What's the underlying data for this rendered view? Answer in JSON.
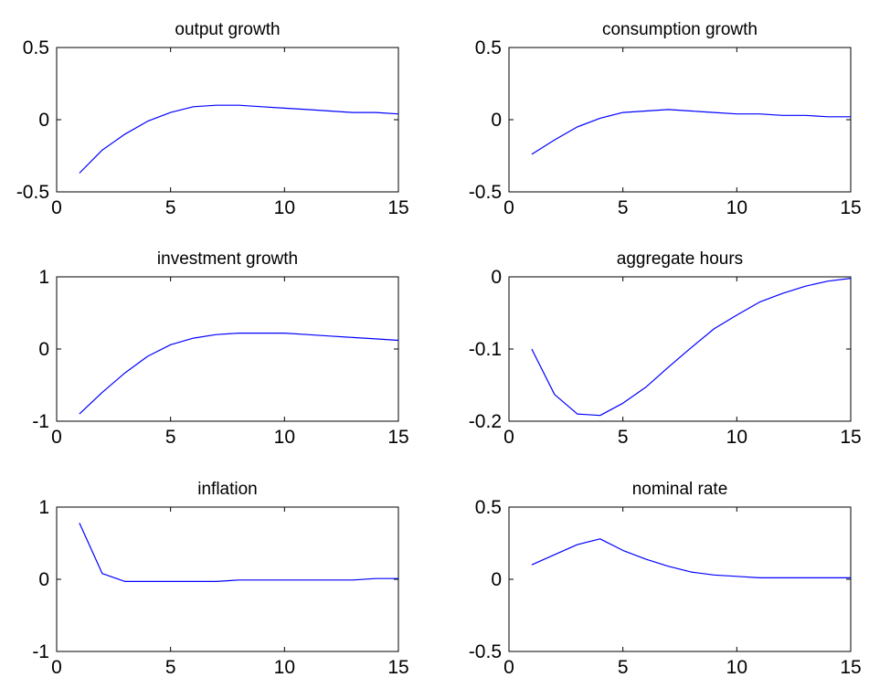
{
  "figure": {
    "line_color": "#0000ff",
    "axes_color": "#000000",
    "background": "#ffffff"
  },
  "chart_data": [
    {
      "type": "line",
      "title": "output growth",
      "xlabel": "",
      "ylabel": "",
      "xlim": [
        0,
        15
      ],
      "ylim": [
        -0.5,
        0.5
      ],
      "xticks": [
        0,
        5,
        10,
        15
      ],
      "xtick_labels": [
        "0",
        "5",
        "10",
        "15"
      ],
      "yticks": [
        -0.5,
        0,
        0.5
      ],
      "ytick_labels": [
        "-0.5",
        "0",
        "0.5"
      ],
      "grid": false,
      "x": [
        1,
        2,
        3,
        4,
        5,
        6,
        7,
        8,
        9,
        10,
        11,
        12,
        13,
        14,
        15
      ],
      "series": [
        {
          "values": [
            -0.37,
            -0.21,
            -0.1,
            -0.01,
            0.05,
            0.09,
            0.1,
            0.1,
            0.09,
            0.08,
            0.07,
            0.06,
            0.05,
            0.05,
            0.04
          ]
        }
      ]
    },
    {
      "type": "line",
      "title": "consumption growth",
      "xlabel": "",
      "ylabel": "",
      "xlim": [
        0,
        15
      ],
      "ylim": [
        -0.5,
        0.5
      ],
      "xticks": [
        0,
        5,
        10,
        15
      ],
      "xtick_labels": [
        "0",
        "5",
        "10",
        "15"
      ],
      "yticks": [
        -0.5,
        0,
        0.5
      ],
      "ytick_labels": [
        "-0.5",
        "0",
        "0.5"
      ],
      "grid": false,
      "x": [
        1,
        2,
        3,
        4,
        5,
        6,
        7,
        8,
        9,
        10,
        11,
        12,
        13,
        14,
        15
      ],
      "series": [
        {
          "values": [
            -0.24,
            -0.14,
            -0.05,
            0.01,
            0.05,
            0.06,
            0.07,
            0.06,
            0.05,
            0.04,
            0.04,
            0.03,
            0.03,
            0.02,
            0.02
          ]
        }
      ]
    },
    {
      "type": "line",
      "title": "investment growth",
      "xlabel": "",
      "ylabel": "",
      "xlim": [
        0,
        15
      ],
      "ylim": [
        -1,
        1
      ],
      "xticks": [
        0,
        5,
        10,
        15
      ],
      "xtick_labels": [
        "0",
        "5",
        "10",
        "15"
      ],
      "yticks": [
        -1,
        0,
        1
      ],
      "ytick_labels": [
        "-1",
        "0",
        "1"
      ],
      "grid": false,
      "x": [
        1,
        2,
        3,
        4,
        5,
        6,
        7,
        8,
        9,
        10,
        11,
        12,
        13,
        14,
        15
      ],
      "series": [
        {
          "values": [
            -0.9,
            -0.6,
            -0.33,
            -0.1,
            0.06,
            0.15,
            0.2,
            0.22,
            0.22,
            0.22,
            0.2,
            0.18,
            0.16,
            0.14,
            0.12
          ]
        }
      ]
    },
    {
      "type": "line",
      "title": "aggregate hours",
      "xlabel": "",
      "ylabel": "",
      "xlim": [
        0,
        15
      ],
      "ylim": [
        -0.2,
        0
      ],
      "xticks": [
        0,
        5,
        10,
        15
      ],
      "xtick_labels": [
        "0",
        "5",
        "10",
        "15"
      ],
      "yticks": [
        -0.2,
        -0.1,
        0
      ],
      "ytick_labels": [
        "-0.2",
        "-0.1",
        "0"
      ],
      "grid": false,
      "x": [
        1,
        2,
        3,
        4,
        5,
        6,
        7,
        8,
        9,
        10,
        11,
        12,
        13,
        14,
        15
      ],
      "series": [
        {
          "values": [
            -0.1,
            -0.163,
            -0.19,
            -0.192,
            -0.175,
            -0.153,
            -0.125,
            -0.098,
            -0.072,
            -0.053,
            -0.035,
            -0.023,
            -0.013,
            -0.006,
            -0.002
          ]
        }
      ]
    },
    {
      "type": "line",
      "title": "inflation",
      "xlabel": "",
      "ylabel": "",
      "xlim": [
        0,
        15
      ],
      "ylim": [
        -1,
        1
      ],
      "xticks": [
        0,
        5,
        10,
        15
      ],
      "xtick_labels": [
        "0",
        "5",
        "10",
        "15"
      ],
      "yticks": [
        -1,
        0,
        1
      ],
      "ytick_labels": [
        "-1",
        "0",
        "1"
      ],
      "grid": false,
      "x": [
        1,
        2,
        3,
        4,
        5,
        6,
        7,
        8,
        9,
        10,
        11,
        12,
        13,
        14,
        15
      ],
      "series": [
        {
          "values": [
            0.78,
            0.08,
            -0.03,
            -0.03,
            -0.03,
            -0.03,
            -0.03,
            -0.01,
            -0.01,
            -0.01,
            -0.01,
            -0.01,
            -0.01,
            0.01,
            0.01
          ]
        }
      ]
    },
    {
      "type": "line",
      "title": "nominal rate",
      "xlabel": "",
      "ylabel": "",
      "xlim": [
        0,
        15
      ],
      "ylim": [
        -0.5,
        0.5
      ],
      "xticks": [
        0,
        5,
        10,
        15
      ],
      "xtick_labels": [
        "0",
        "5",
        "10",
        "15"
      ],
      "yticks": [
        -0.5,
        0,
        0.5
      ],
      "ytick_labels": [
        "-0.5",
        "0",
        "0.5"
      ],
      "grid": false,
      "x": [
        1,
        2,
        3,
        4,
        5,
        6,
        7,
        8,
        9,
        10,
        11,
        12,
        13,
        14,
        15
      ],
      "series": [
        {
          "values": [
            0.1,
            0.17,
            0.24,
            0.28,
            0.2,
            0.14,
            0.09,
            0.05,
            0.03,
            0.02,
            0.01,
            0.01,
            0.01,
            0.01,
            0.01
          ]
        }
      ]
    }
  ]
}
